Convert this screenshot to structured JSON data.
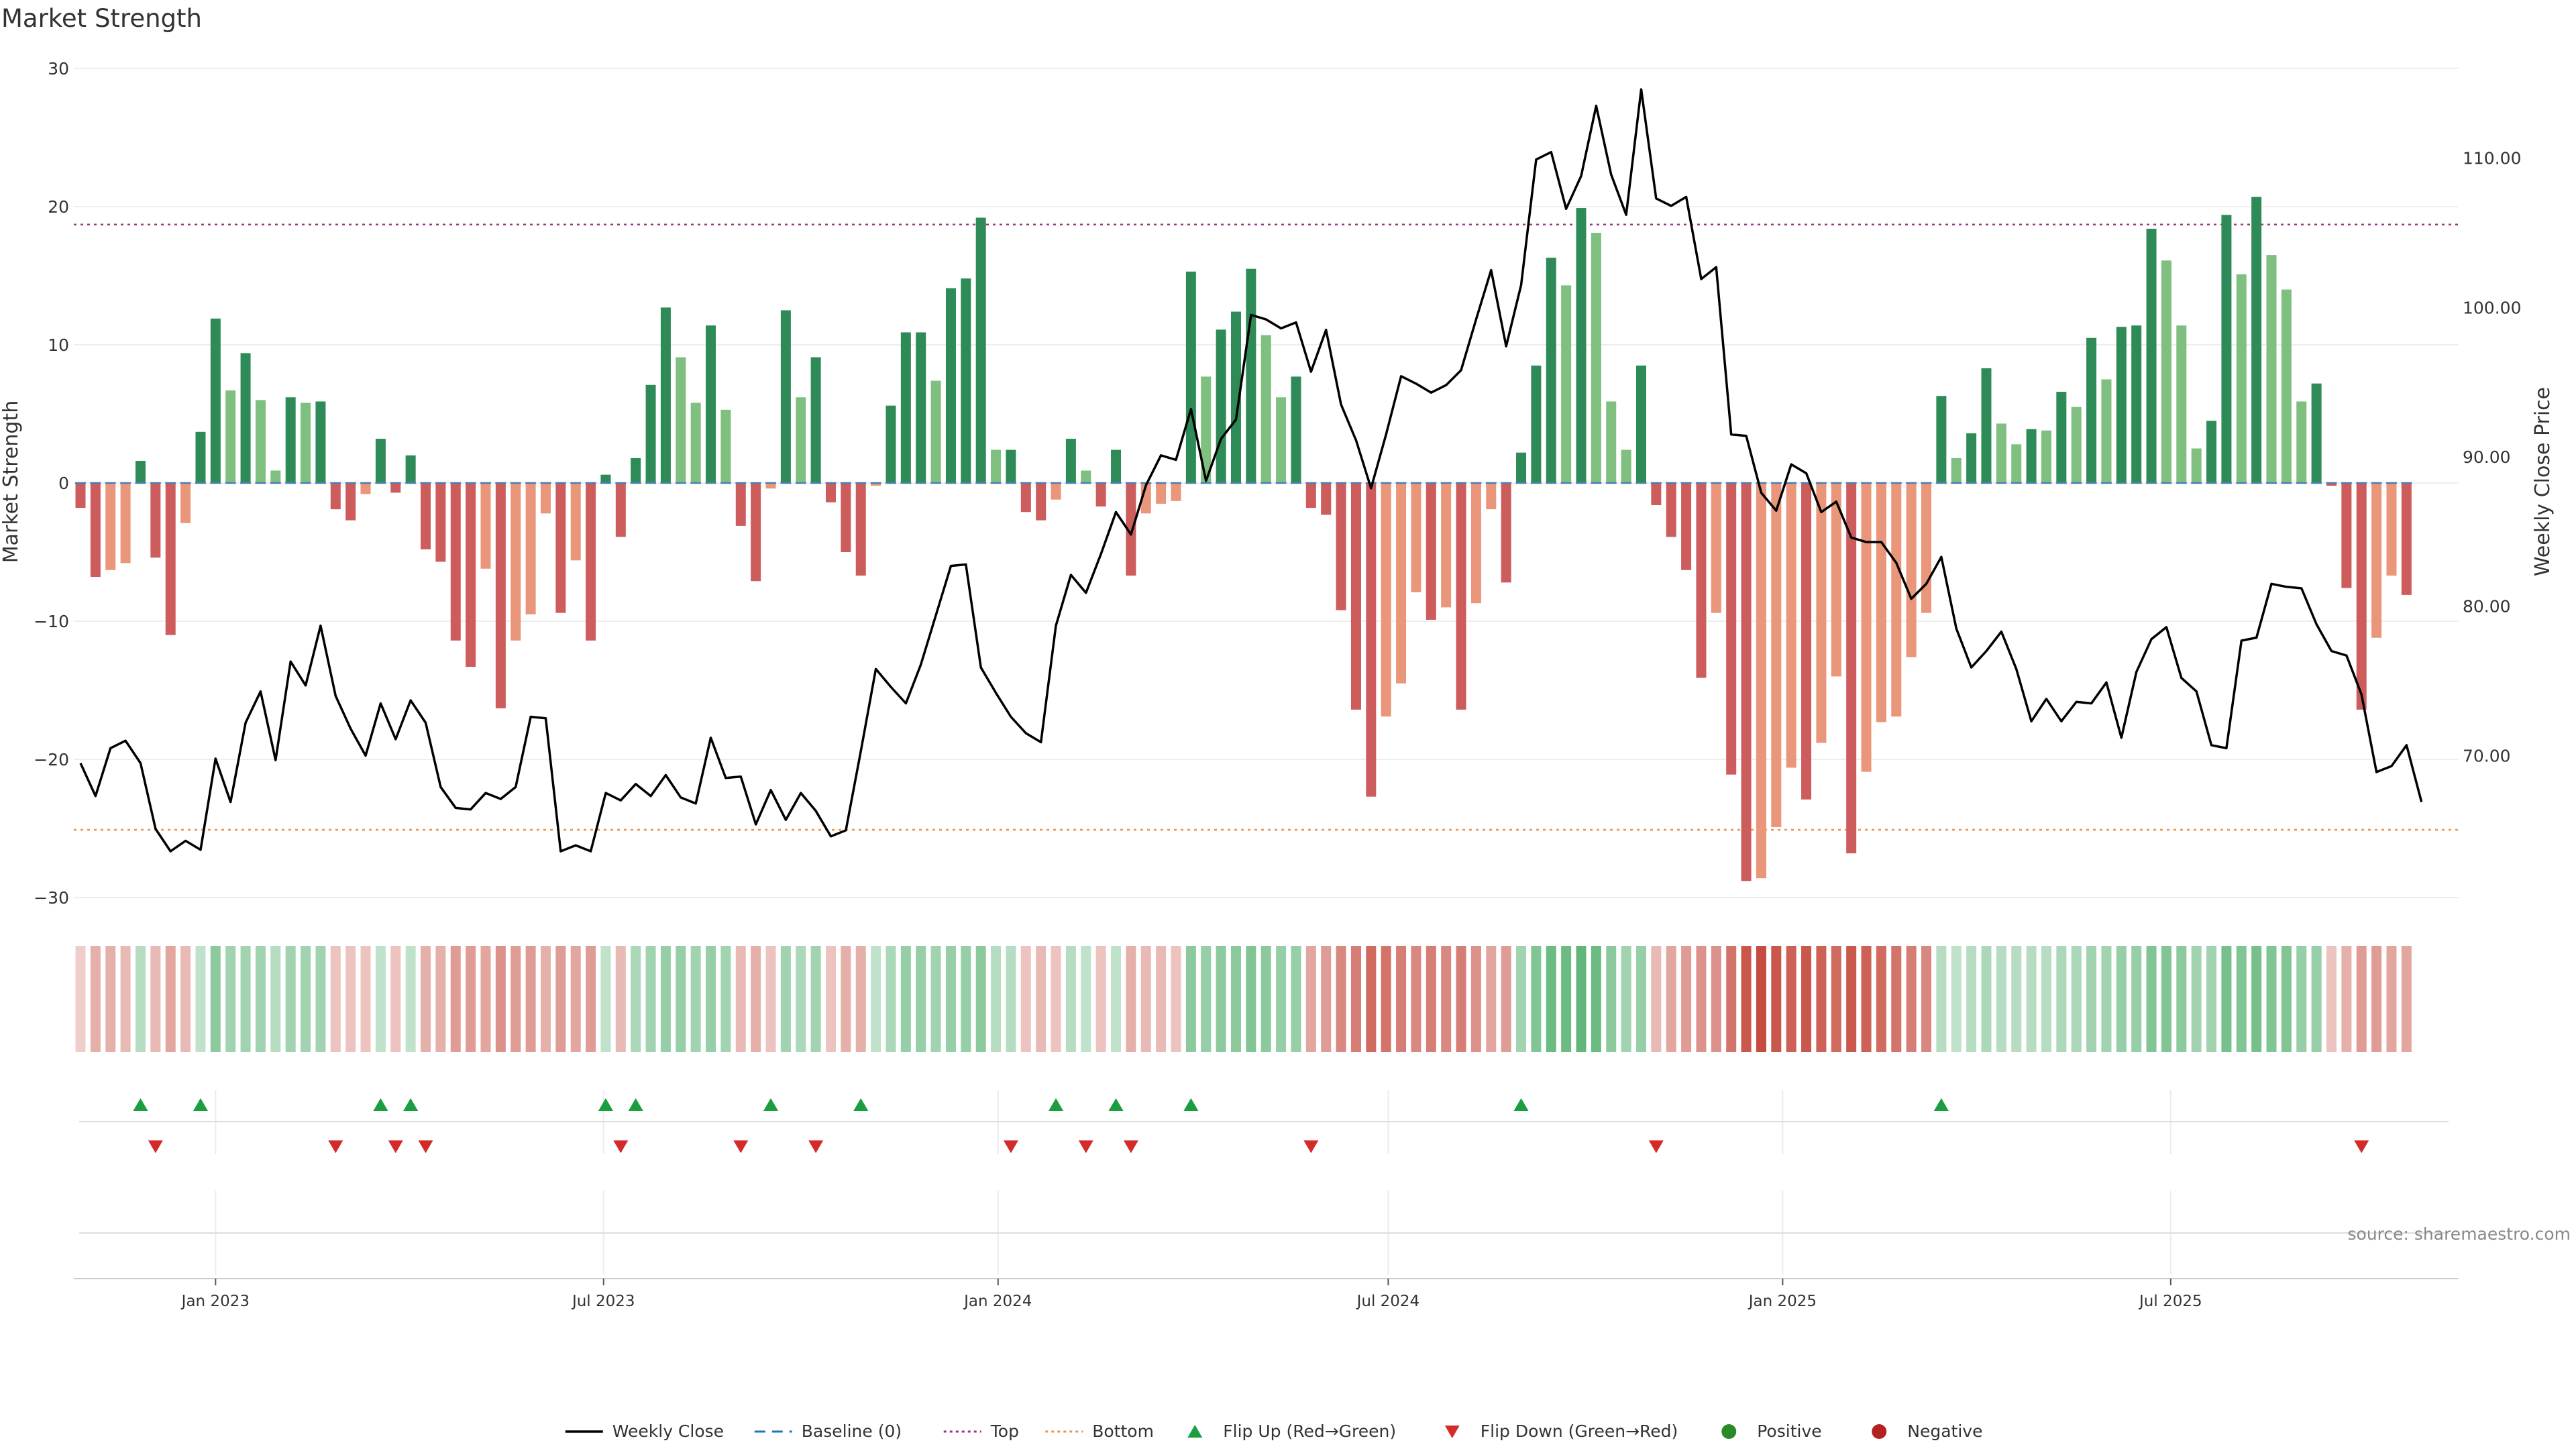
{
  "chart_data": {
    "type": "bar",
    "title": "Market Strength",
    "ylabel": "Market Strength",
    "y2label": "Weekly Close Price",
    "ylim": [
      -30,
      30
    ],
    "yticks": [
      30,
      20,
      10,
      0,
      -10,
      -20,
      -30
    ],
    "y2lim": [
      60.5,
      116.0
    ],
    "y2ticks": [
      110,
      100,
      90,
      80,
      70
    ],
    "y2tick_labels": [
      "110.00",
      "100.00",
      "90.00",
      "80.00",
      "70.00"
    ],
    "top_threshold": 18.7,
    "bottom_threshold": -25.1,
    "x_start": "2022-10-30",
    "week_interval_days": 7,
    "xticks": [
      {
        "date": "2023-01-01",
        "label": "Jan 2023"
      },
      {
        "date": "2023-07-01",
        "label": "Jul 2023"
      },
      {
        "date": "2024-01-01",
        "label": "Jan 2024"
      },
      {
        "date": "2024-07-01",
        "label": "Jul 2024"
      },
      {
        "date": "2025-01-01",
        "label": "Jan 2025"
      },
      {
        "date": "2025-07-01",
        "label": "Jul 2025"
      }
    ],
    "series": [
      {
        "name": "Market Strength",
        "values": [
          -1.8,
          -6.8,
          -6.3,
          -5.8,
          1.6,
          -5.4,
          -11,
          -2.9,
          3.7,
          11.9,
          6.7,
          9.4,
          6,
          0.9,
          6.2,
          5.8,
          5.9,
          -1.9,
          -2.7,
          -0.8,
          3.2,
          -0.7,
          2,
          -4.8,
          -5.7,
          -11.4,
          -13.3,
          -6.2,
          -16.3,
          -11.4,
          -9.5,
          -2.2,
          -9.4,
          -5.6,
          -11.4,
          0.6,
          -3.9,
          1.8,
          7.1,
          12.7,
          9.1,
          5.8,
          11.4,
          5.3,
          -3.1,
          -7.1,
          -0.4,
          12.5,
          6.2,
          9.1,
          -1.4,
          -5,
          -6.7,
          -0.2,
          5.6,
          10.9,
          10.9,
          7.4,
          14.1,
          14.8,
          19.2,
          2.4,
          2.4,
          -2.1,
          -2.7,
          -1.2,
          3.2,
          0.9,
          -1.7,
          2.4,
          -6.7,
          -2.2,
          -1.5,
          -1.3,
          15.3,
          7.7,
          11.1,
          12.4,
          15.5,
          10.7,
          6.2,
          7.7,
          -1.8,
          -2.3,
          -9.2,
          -16.4,
          -22.7,
          -16.9,
          -14.5,
          -7.9,
          -9.9,
          -9,
          -16.4,
          -8.7,
          -1.9,
          -7.2,
          2.2,
          8.5,
          16.3,
          14.3,
          19.9,
          18.1,
          5.9,
          2.4,
          8.5,
          -1.6,
          -3.9,
          -6.3,
          -14.1,
          -9.4,
          -21.1,
          -28.8,
          -28.6,
          -24.9,
          -20.6,
          -22.9,
          -18.8,
          -14,
          -26.8,
          -20.9,
          -17.3,
          -16.9,
          -12.6,
          -9.4,
          6.3,
          1.8,
          3.6,
          8.3,
          4.3,
          2.8,
          3.9,
          3.8,
          6.6,
          5.5,
          10.5,
          7.5,
          11.3,
          11.4,
          18.4,
          16.1,
          11.4,
          2.5,
          4.5,
          19.4,
          15.1,
          20.7,
          16.5,
          14,
          5.9,
          7.2,
          -0.2,
          -7.6,
          -16.4,
          -11.2,
          -6.7,
          -8.1
        ]
      },
      {
        "name": "Weekly Close",
        "values": [
          69.5,
          67.3,
          70.5,
          71,
          69.5,
          65.1,
          63.6,
          64.3,
          63.7,
          69.8,
          66.9,
          72.2,
          74.3,
          69.7,
          76.3,
          74.7,
          78.7,
          74,
          71.8,
          70,
          73.5,
          71.1,
          73.7,
          72.2,
          67.9,
          66.5,
          66.4,
          67.5,
          67.1,
          67.9,
          72.6,
          72.5,
          63.6,
          64,
          63.6,
          67.5,
          67,
          68.1,
          67.3,
          68.7,
          67.2,
          66.8,
          71.2,
          68.5,
          68.6,
          65.4,
          67.7,
          65.7,
          67.5,
          66.3,
          64.6,
          65,
          70.3,
          75.8,
          74.6,
          73.5,
          76.1,
          79.4,
          82.7,
          82.8,
          75.9,
          74.2,
          72.6,
          71.5,
          70.9,
          78.7,
          82.1,
          80.9,
          83.5,
          86.3,
          84.8,
          88.1,
          90.1,
          89.8,
          93.2,
          88.4,
          91.2,
          92.5,
          99.5,
          99.2,
          98.6,
          99,
          95.7,
          98.5,
          93.5,
          91.1,
          87.9,
          91.5,
          95.4,
          94.9,
          94.3,
          94.8,
          95.8,
          99.2,
          102.5,
          97.4,
          101.5,
          109.9,
          110.4,
          106.6,
          108.8,
          113.5,
          108.9,
          106.2,
          114.6,
          107.3,
          106.8,
          107.4,
          101.9,
          102.7,
          91.5,
          91.4,
          87.6,
          86.4,
          89.5,
          88.9,
          86.3,
          87,
          84.6,
          84.3,
          84.3,
          82.9,
          80.5,
          81.5,
          83.3,
          78.5,
          75.9,
          77,
          78.3,
          75.8,
          72.3,
          73.8,
          72.3,
          73.6,
          73.5,
          74.9,
          71.2,
          75.6,
          77.8,
          78.6,
          75.2,
          74.3,
          70.7,
          70.5,
          77.7,
          77.9,
          81.5,
          81.3,
          81.2,
          78.8,
          77,
          76.7,
          74.1,
          68.9,
          69.3,
          70.7,
          66.9
        ]
      }
    ],
    "strip_intensity": [
      -0.25,
      -0.4,
      -0.4,
      -0.35,
      0.35,
      -0.35,
      -0.45,
      -0.35,
      0.3,
      0.55,
      0.45,
      0.45,
      0.45,
      0.35,
      0.45,
      0.45,
      0.45,
      -0.3,
      -0.3,
      -0.3,
      0.3,
      -0.3,
      0.3,
      -0.4,
      -0.4,
      -0.5,
      -0.5,
      -0.45,
      -0.55,
      -0.5,
      -0.5,
      -0.4,
      -0.5,
      -0.45,
      -0.5,
      0.3,
      -0.35,
      0.4,
      0.45,
      0.5,
      0.5,
      0.45,
      0.5,
      0.45,
      -0.35,
      -0.4,
      -0.3,
      0.45,
      0.4,
      0.45,
      -0.3,
      -0.4,
      -0.4,
      0.3,
      0.4,
      0.5,
      0.5,
      0.45,
      0.5,
      0.5,
      0.55,
      0.35,
      0.35,
      -0.3,
      -0.35,
      -0.3,
      0.35,
      0.3,
      -0.3,
      0.3,
      -0.4,
      -0.35,
      -0.35,
      -0.3,
      0.55,
      0.5,
      0.55,
      0.55,
      0.6,
      0.55,
      0.5,
      0.5,
      -0.45,
      -0.5,
      -0.6,
      -0.65,
      -0.75,
      -0.7,
      -0.65,
      -0.6,
      -0.65,
      -0.6,
      -0.65,
      -0.55,
      -0.45,
      -0.5,
      0.45,
      0.6,
      0.7,
      0.7,
      0.75,
      0.7,
      0.55,
      0.45,
      0.5,
      -0.35,
      -0.45,
      -0.5,
      -0.55,
      -0.55,
      -0.7,
      -0.85,
      -0.9,
      -0.85,
      -0.8,
      -0.85,
      -0.8,
      -0.75,
      -0.85,
      -0.8,
      -0.75,
      -0.7,
      -0.65,
      -0.6,
      0.35,
      0.3,
      0.35,
      0.4,
      0.35,
      0.35,
      0.35,
      0.35,
      0.4,
      0.4,
      0.45,
      0.45,
      0.5,
      0.5,
      0.6,
      0.6,
      0.55,
      0.45,
      0.45,
      0.65,
      0.6,
      0.65,
      0.6,
      0.6,
      0.5,
      0.5,
      -0.3,
      -0.4,
      -0.5,
      -0.5,
      -0.45,
      -0.45
    ],
    "flip_up_weeks": [
      4,
      8,
      20,
      22,
      35,
      37,
      46,
      52,
      65,
      69,
      74,
      96,
      124
    ],
    "flip_down_weeks": [
      5,
      17,
      21,
      23,
      36,
      44,
      49,
      62,
      67,
      70,
      82,
      105,
      152
    ],
    "source": "source: sharemaestro.com",
    "legend": [
      {
        "label": "Weekly Close",
        "kind": "line",
        "color": "#000000"
      },
      {
        "label": "Baseline (0)",
        "kind": "dash",
        "color": "#1f77b4"
      },
      {
        "label": "Top",
        "kind": "dot",
        "color": "#a0337a"
      },
      {
        "label": "Bottom",
        "kind": "dot",
        "color": "#e8944b"
      },
      {
        "label": "Flip Up (Red→Green)",
        "kind": "tri-up",
        "color": "#1a9e3f"
      },
      {
        "label": "Flip Down (Green→Red)",
        "kind": "tri-down",
        "color": "#d42a2a"
      },
      {
        "label": "Positive",
        "kind": "dot-marker",
        "color": "#2a8a2a"
      },
      {
        "label": "Negative",
        "kind": "dot-marker",
        "color": "#b22222"
      }
    ],
    "colors": {
      "pos_strong": "#2e8b57",
      "pos_light": "#7fbf7f",
      "neg_strong": "#cd5c5c",
      "neg_light": "#e9967a",
      "price_line": "#000000"
    },
    "grid": true,
    "legend_position": "bottom-center"
  }
}
